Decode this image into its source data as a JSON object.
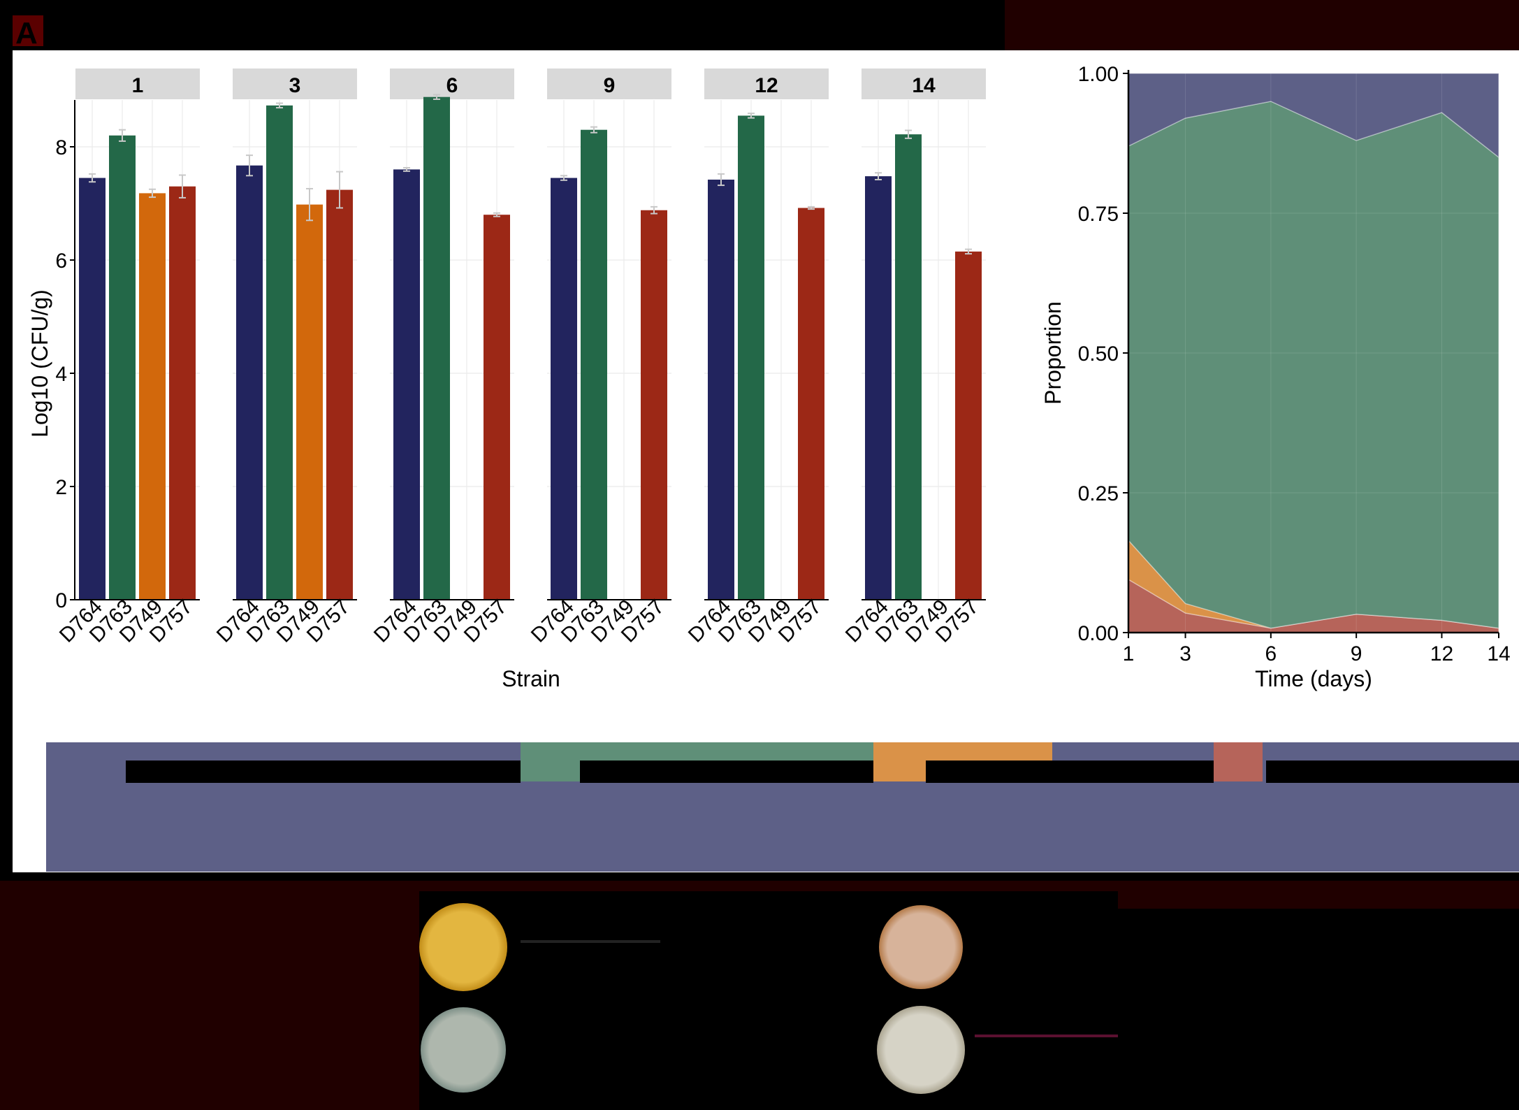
{
  "panel_label": "A",
  "colors": {
    "navy": "#22245e",
    "green": "#236848",
    "orange": "#d2680c",
    "red": "#9c2816",
    "area_navy": "#5d6087",
    "area_green": "#5f8f78",
    "area_orange": "#da9248",
    "area_red": "#b6645a",
    "strip_bg": "#d9d9d9",
    "errorbar": "#c8c8c8"
  },
  "chart_data": [
    {
      "type": "bar",
      "facet_by": "Time (days)",
      "facets": [
        "1",
        "3",
        "6",
        "9",
        "12",
        "14"
      ],
      "categories": [
        "D764",
        "D763",
        "D749",
        "D757"
      ],
      "series_colors": [
        "navy",
        "green",
        "orange",
        "red"
      ],
      "values": [
        [
          7.45,
          8.2,
          7.18,
          7.3
        ],
        [
          7.67,
          8.73,
          6.98,
          7.24
        ],
        [
          7.6,
          8.88,
          null,
          6.8
        ],
        [
          7.45,
          8.3,
          null,
          6.88
        ],
        [
          7.42,
          8.55,
          null,
          6.92
        ],
        [
          7.48,
          8.22,
          null,
          6.15
        ]
      ],
      "errors": [
        [
          0.07,
          0.1,
          0.07,
          0.2
        ],
        [
          0.18,
          0.04,
          0.28,
          0.32
        ],
        [
          0.03,
          0.04,
          null,
          0.03
        ],
        [
          0.04,
          0.05,
          null,
          0.06
        ],
        [
          0.1,
          0.04,
          null,
          0.02
        ],
        [
          0.06,
          0.07,
          null,
          0.04
        ]
      ],
      "xlabel": "Strain",
      "ylabel": "Log10 (CFU/g)",
      "yticks": [
        "0",
        "2",
        "4",
        "6",
        "8"
      ],
      "ylim": [
        0,
        9
      ]
    },
    {
      "type": "area",
      "stacked": true,
      "x": [
        1,
        3,
        6,
        9,
        12,
        14
      ],
      "xticks": [
        "1",
        "3",
        "6",
        "9",
        "12",
        "14"
      ],
      "series": [
        {
          "color": "area_red",
          "values": [
            0.095,
            0.035,
            0.008,
            0.033,
            0.022,
            0.008
          ]
        },
        {
          "color": "area_orange",
          "values": [
            0.07,
            0.017,
            0.0,
            0.0,
            0.0,
            0.0
          ]
        },
        {
          "color": "area_green",
          "values": [
            0.705,
            0.868,
            0.942,
            0.847,
            0.908,
            0.842
          ]
        },
        {
          "color": "area_navy",
          "values": [
            0.13,
            0.08,
            0.05,
            0.12,
            0.07,
            0.15
          ]
        }
      ],
      "xlabel": "Time (days)",
      "ylabel": "Proportion",
      "yticks": [
        "0.00",
        "0.25",
        "0.50",
        "0.75",
        "1.00"
      ],
      "ylim": [
        0,
        1
      ]
    }
  ],
  "legend_colors": [
    "area_navy",
    "area_green",
    "area_orange",
    "area_red"
  ],
  "colonies": [
    {
      "color_center": "#e3b640",
      "color_edge": "#c28d18"
    },
    {
      "color_center": "#d7b39a",
      "color_edge": "#b47a48"
    },
    {
      "color_center": "#aeb7ad",
      "color_edge": "#7e9088"
    },
    {
      "color_center": "#d6d3c6",
      "color_edge": "#aca692"
    }
  ]
}
